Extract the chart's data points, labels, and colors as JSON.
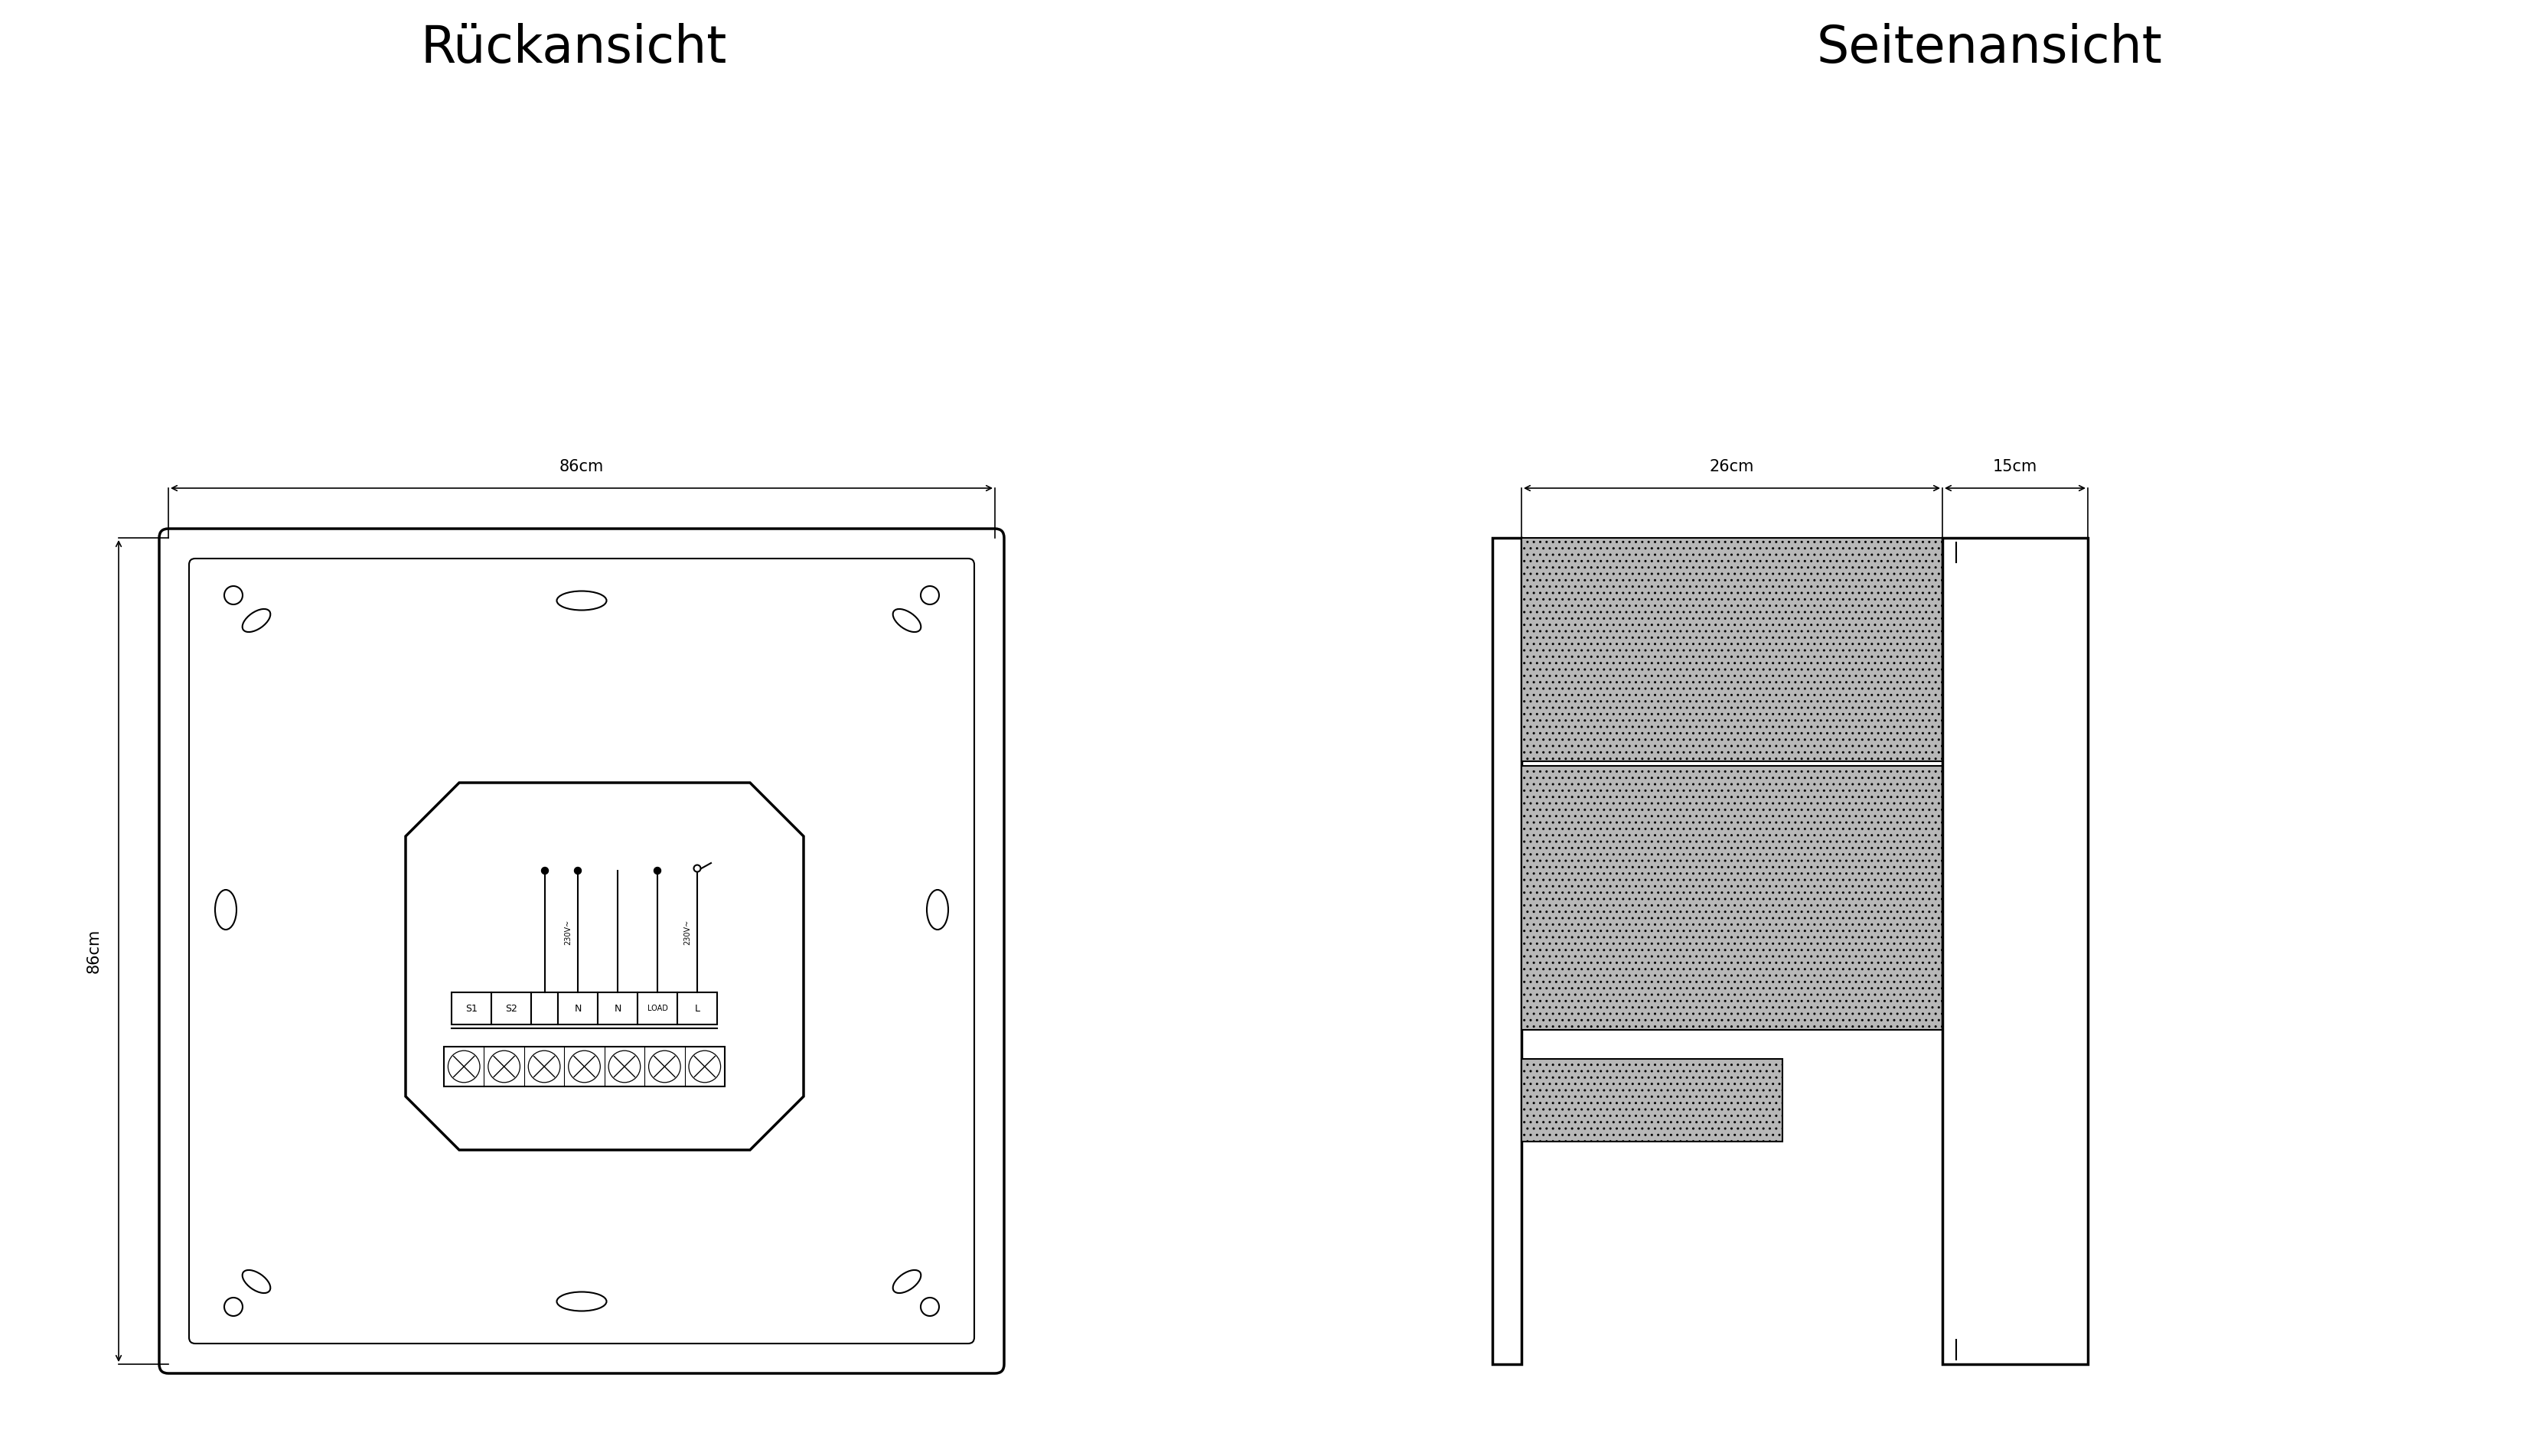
{
  "title_left": "Rückansicht",
  "title_right": "Seitenansicht",
  "dim_width": "86cm",
  "dim_height": "86cm",
  "dim_side1": "26cm",
  "dim_side2": "15cm",
  "bg_color": "#ffffff",
  "line_color": "#000000",
  "gray_color": "#b8b8b8"
}
